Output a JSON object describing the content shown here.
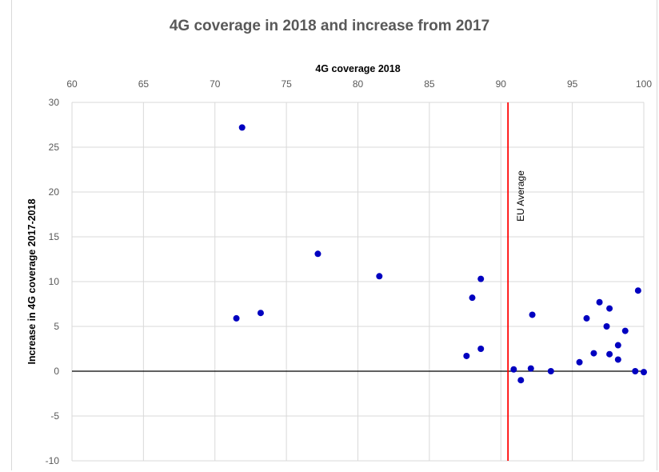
{
  "chart_data": {
    "type": "scatter",
    "title": "4G coverage in 2018 and increase from 2017",
    "xlabel": "4G coverage 2018",
    "ylabel": "Increase in 4G coverage 2017-2018",
    "xlim": [
      60,
      100
    ],
    "ylim": [
      -10,
      30
    ],
    "x_ticks": [
      "60",
      "65",
      "70",
      "75",
      "80",
      "85",
      "90",
      "95",
      "100"
    ],
    "y_ticks": [
      "30",
      "25",
      "20",
      "15",
      "10",
      "5",
      "0",
      "-5",
      "-10"
    ],
    "x_axis_position": "top",
    "grid": true,
    "legend": "none",
    "point_color": "#0000c0",
    "reference_line": {
      "x": 90.5,
      "label": "EU Average",
      "color": "#ff0000"
    },
    "zero_line_color": "#000000",
    "points": [
      {
        "x": 71.9,
        "y": 27.2
      },
      {
        "x": 71.5,
        "y": 5.9
      },
      {
        "x": 73.2,
        "y": 6.5
      },
      {
        "x": 77.2,
        "y": 13.1
      },
      {
        "x": 81.5,
        "y": 10.6
      },
      {
        "x": 87.6,
        "y": 1.7
      },
      {
        "x": 88.0,
        "y": 8.2
      },
      {
        "x": 88.6,
        "y": 10.3
      },
      {
        "x": 88.6,
        "y": 2.5
      },
      {
        "x": 90.9,
        "y": 0.2
      },
      {
        "x": 91.4,
        "y": -1.0
      },
      {
        "x": 92.1,
        "y": 0.3
      },
      {
        "x": 92.2,
        "y": 6.3
      },
      {
        "x": 93.5,
        "y": 0.0
      },
      {
        "x": 95.5,
        "y": 1.0
      },
      {
        "x": 96.0,
        "y": 5.9
      },
      {
        "x": 96.5,
        "y": 2.0
      },
      {
        "x": 96.9,
        "y": 7.7
      },
      {
        "x": 97.4,
        "y": 5.0
      },
      {
        "x": 97.6,
        "y": 7.0
      },
      {
        "x": 97.6,
        "y": 1.9
      },
      {
        "x": 98.2,
        "y": 2.9
      },
      {
        "x": 98.2,
        "y": 1.3
      },
      {
        "x": 98.7,
        "y": 4.5
      },
      {
        "x": 99.4,
        "y": 0.0
      },
      {
        "x": 99.6,
        "y": 9.0
      },
      {
        "x": 100.0,
        "y": -0.1
      }
    ]
  }
}
